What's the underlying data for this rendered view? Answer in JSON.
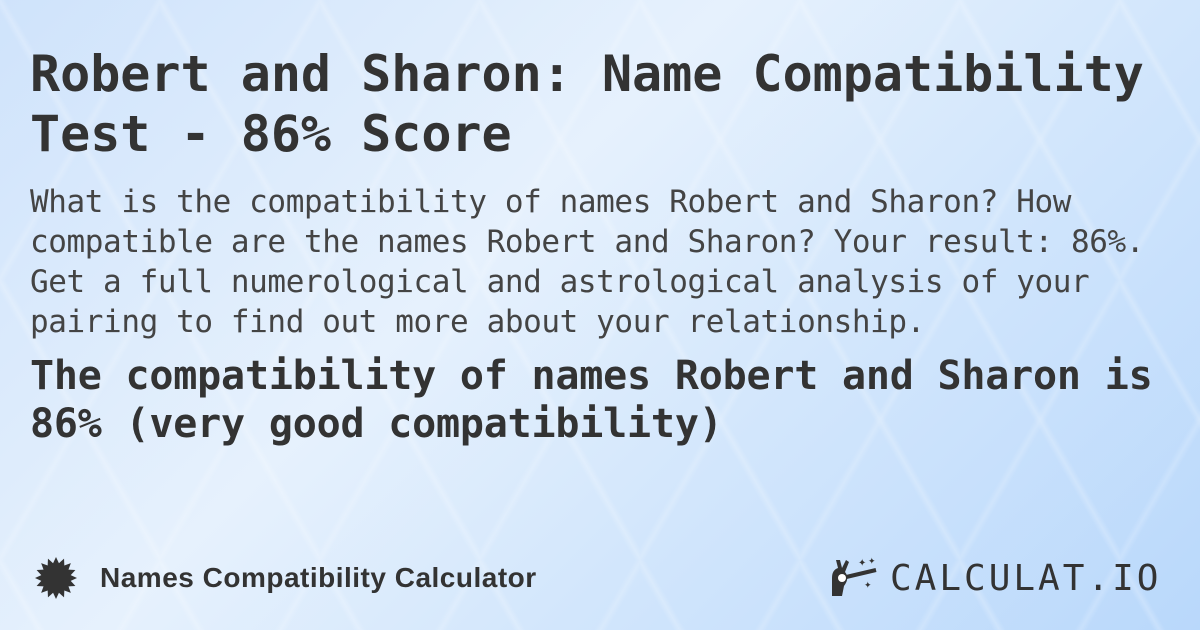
{
  "title": "Robert and Sharon: Name Compatibility Test - 86% Score",
  "description": "What is the compatibility of names Robert and Sharon? How compatible are the names Robert and Sharon? Your result: 86%. Get a full numerological and astrological analysis of your pairing to find out more about your relationship.",
  "result": "The compatibility of names Robert and Sharon is 86% (very good compatibility)",
  "score_percent": 86,
  "footer": {
    "calculator_name": "Names Compatibility Calculator",
    "icon": "badge-icon"
  },
  "logo": {
    "text": "CALCULAT.IO",
    "icon": "magic-hand-icon"
  },
  "colors": {
    "text": "#333333",
    "background": "#d6e8fc"
  }
}
